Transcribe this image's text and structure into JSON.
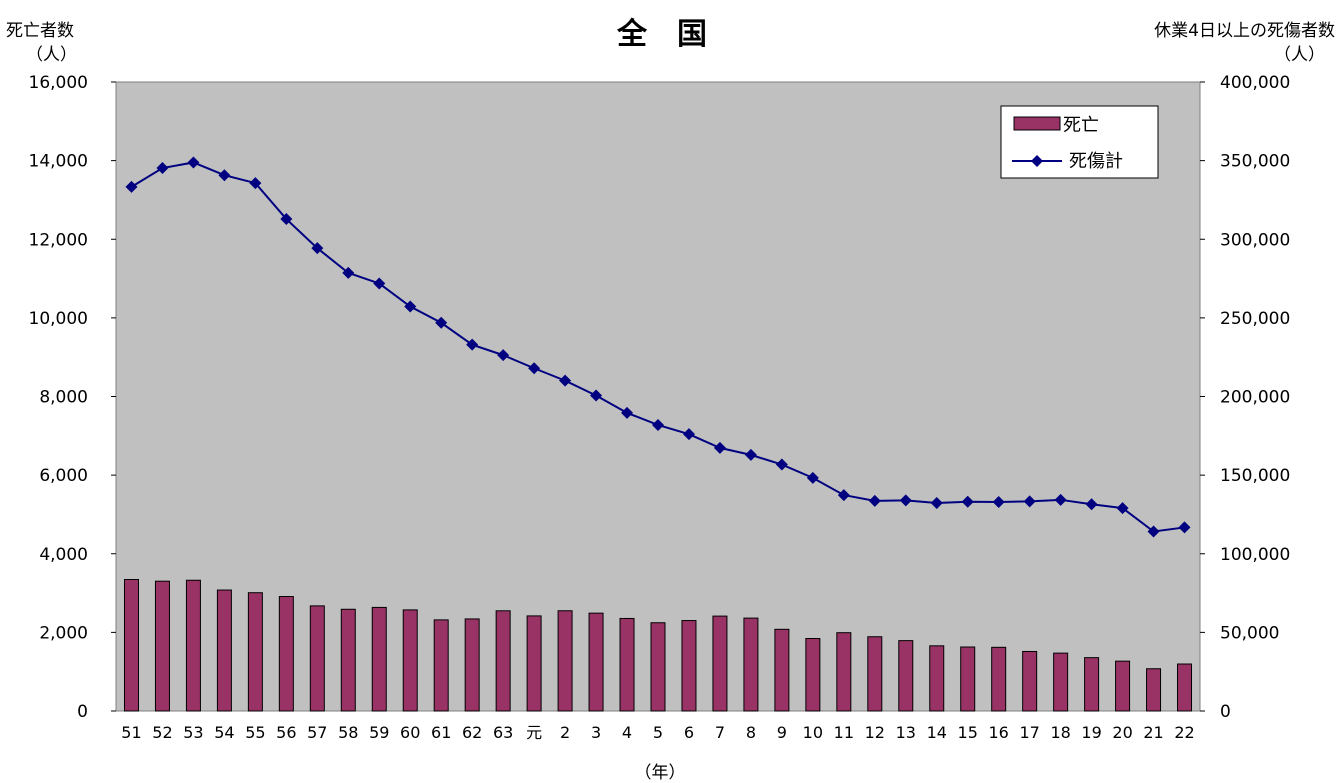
{
  "chart_data": {
    "type": "bar",
    "title": "全　国",
    "xlabel": "（年）",
    "y_left_label": "死亡者数",
    "y_left_unit": "（人）",
    "y_right_label": "休業4日以上の死傷者数",
    "y_right_unit": "（人）",
    "y_left_lim": [
      0,
      16000
    ],
    "y_left_ticks": [
      "0",
      "2,000",
      "4,000",
      "6,000",
      "8,000",
      "10,000",
      "12,000",
      "14,000",
      "16,000"
    ],
    "y_right_lim": [
      0,
      400000
    ],
    "y_right_ticks": [
      "0",
      "50,000",
      "100,000",
      "150,000",
      "200,000",
      "250,000",
      "300,000",
      "350,000",
      "400,000"
    ],
    "categories": [
      "51",
      "52",
      "53",
      "54",
      "55",
      "56",
      "57",
      "58",
      "59",
      "60",
      "61",
      "62",
      "63",
      "元",
      "2",
      "3",
      "4",
      "5",
      "6",
      "7",
      "8",
      "9",
      "10",
      "11",
      "12",
      "13",
      "14",
      "15",
      "16",
      "17",
      "18",
      "19",
      "20",
      "21",
      "22"
    ],
    "series": [
      {
        "name": "死亡",
        "type": "bar",
        "axis": "left",
        "color": "#993366",
        "values": [
          3345,
          3302,
          3326,
          3077,
          3009,
          2912,
          2674,
          2588,
          2635,
          2572,
          2318,
          2342,
          2549,
          2419,
          2550,
          2489,
          2354,
          2245,
          2301,
          2414,
          2363,
          2078,
          1844,
          1992,
          1889,
          1790,
          1658,
          1628,
          1620,
          1514,
          1472,
          1357,
          1268,
          1075,
          1195
        ]
      },
      {
        "name": "死傷計",
        "type": "line",
        "axis": "right",
        "color": "#000080",
        "values": [
          333311,
          345293,
          348826,
          340731,
          335706,
          312844,
          294319,
          278623,
          271884,
          257240,
          246891,
          232953,
          226318,
          217964,
          210108,
          200633,
          189589,
          181900,
          176047,
          167316,
          162862,
          156726,
          148248,
          137316,
          133598,
          133948,
          132248,
          133050,
          132937,
          133296,
          134298,
          131478,
          129026,
          114152,
          116733
        ]
      }
    ],
    "grid": false,
    "legend_position": "top-right"
  }
}
